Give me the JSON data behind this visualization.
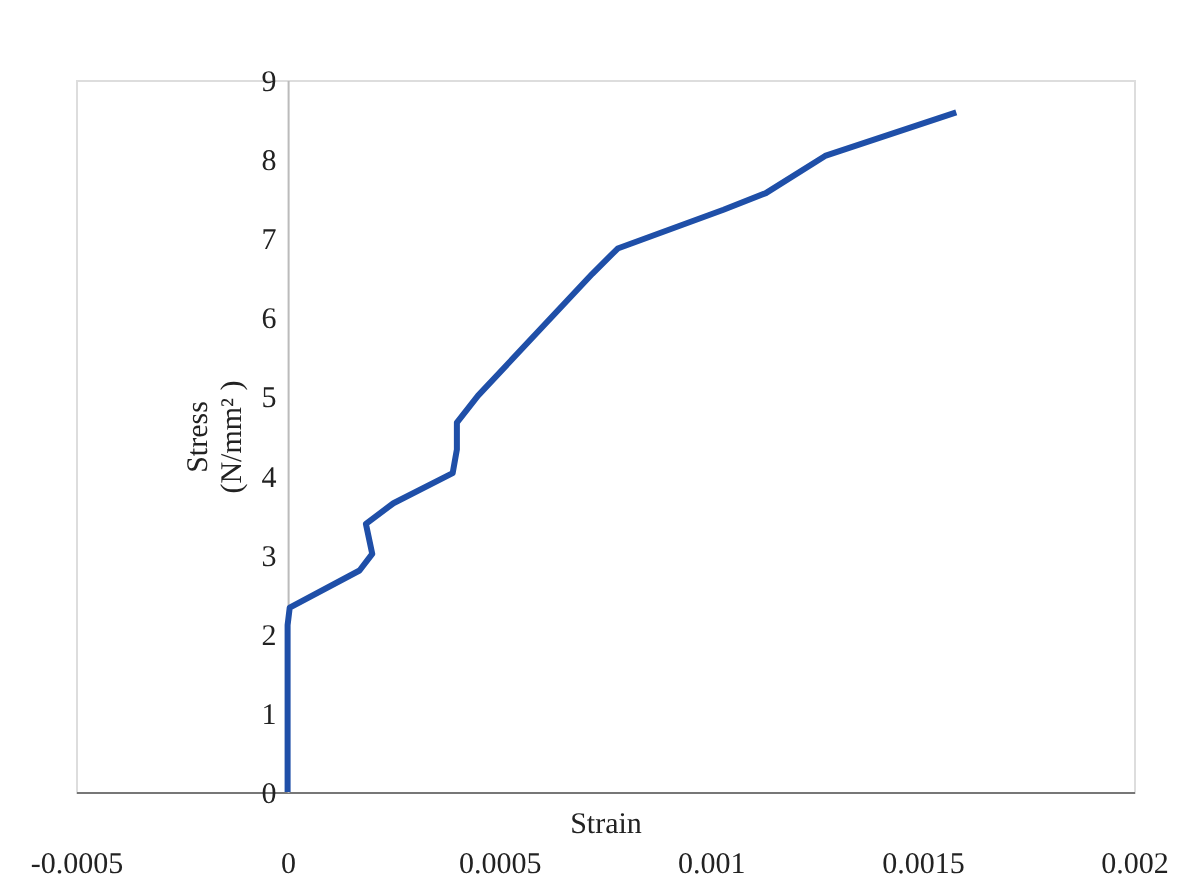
{
  "chart_data": {
    "type": "line",
    "xlabel": "Strain",
    "ylabel": "Stress\n(N/mm²  )",
    "x": [
      0,
      0,
      0,
      5e-06,
      0.00017,
      0.0002,
      0.000185,
      0.00025,
      0.00039,
      0.0004,
      0.0004,
      0.00045,
      0.00072,
      0.00078,
      0.00103,
      0.00113,
      0.00127,
      0.00158
    ],
    "series": [
      {
        "color": "#1f4fa8",
        "values": [
          0,
          1.77,
          2.11,
          2.33,
          2.8,
          3.01,
          3.39,
          3.65,
          4.03,
          4.33,
          4.67,
          5.01,
          6.55,
          6.87,
          7.36,
          7.57,
          8.04,
          8.59
        ]
      }
    ],
    "xlim": [
      -0.0005,
      0.002
    ],
    "xticks": [
      -0.0005,
      0,
      0.0005,
      0.001,
      0.0015,
      0.002
    ],
    "ylim": [
      0,
      9
    ],
    "yticks": [
      0,
      1,
      2,
      3,
      4,
      5,
      6,
      7,
      8,
      9
    ],
    "grid": false,
    "marker": "none",
    "line_style": "solid"
  }
}
